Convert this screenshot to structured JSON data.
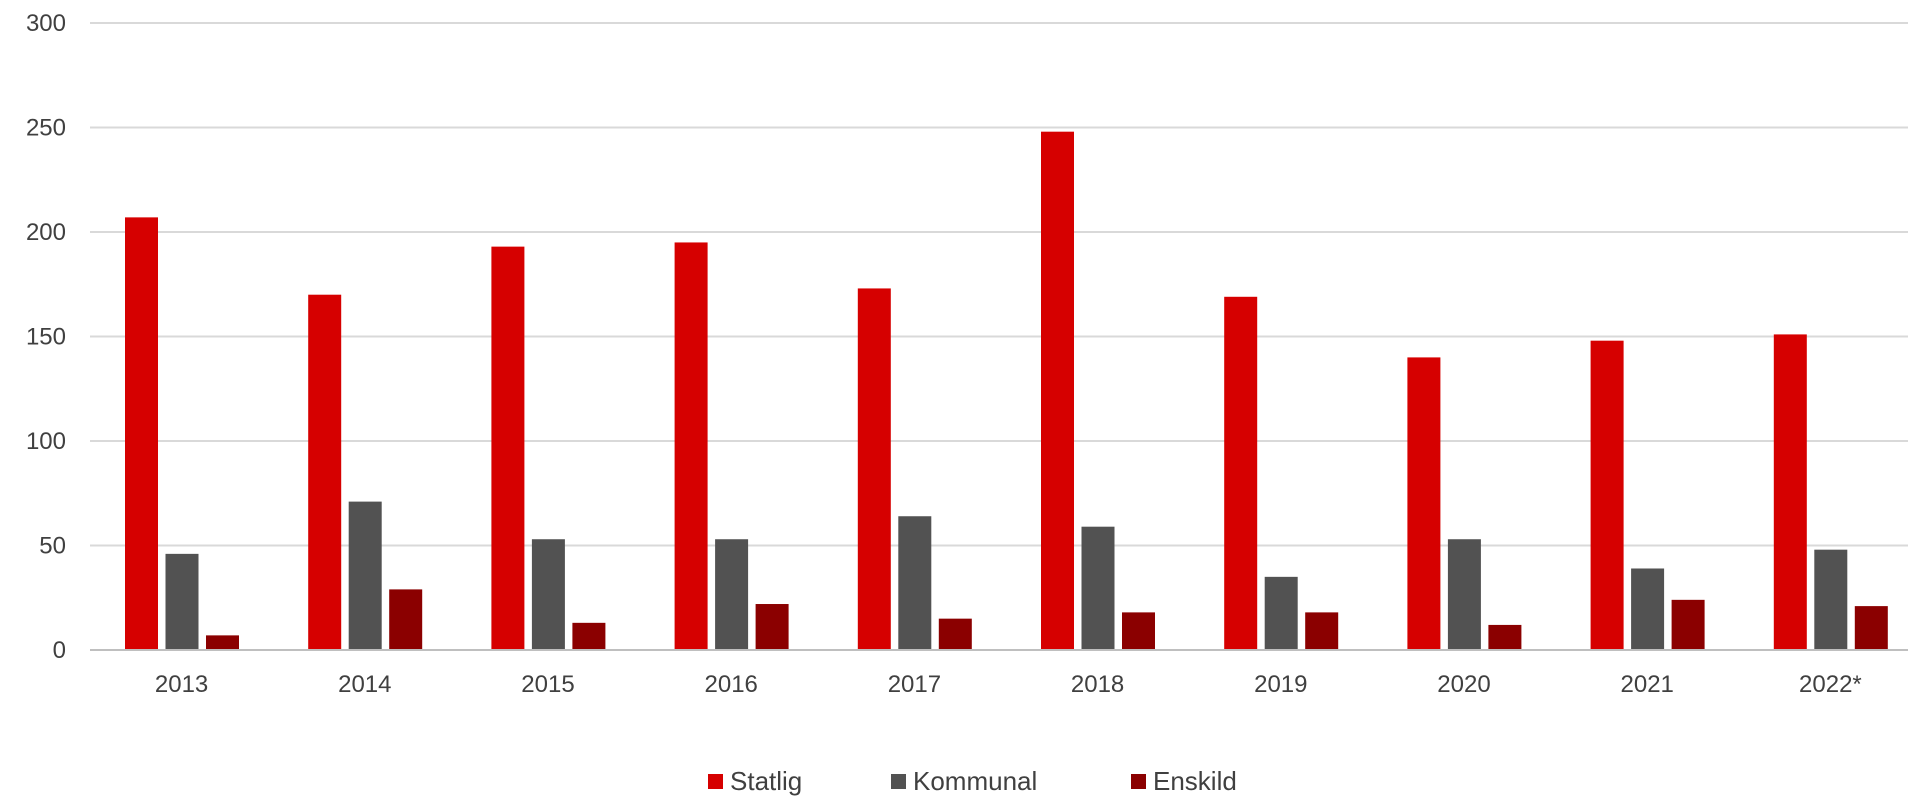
{
  "chart_data": {
    "type": "bar",
    "categories": [
      "2013",
      "2014",
      "2015",
      "2016",
      "2017",
      "2018",
      "2019",
      "2020",
      "2021",
      "2022*"
    ],
    "series": [
      {
        "name": "Statlig",
        "color": "#d60000",
        "values": [
          207,
          170,
          193,
          195,
          173,
          248,
          169,
          140,
          148,
          151
        ]
      },
      {
        "name": "Kommunal",
        "color": "#525252",
        "values": [
          46,
          71,
          53,
          53,
          64,
          59,
          35,
          53,
          39,
          48
        ]
      },
      {
        "name": "Enskild",
        "color": "#8b0000",
        "values": [
          7,
          29,
          13,
          22,
          15,
          18,
          18,
          12,
          24,
          21
        ]
      }
    ],
    "ylim": [
      0,
      300
    ],
    "yticks": [
      0,
      50,
      100,
      150,
      200,
      250,
      300
    ],
    "grid": true,
    "legend_position": "bottom-center"
  }
}
